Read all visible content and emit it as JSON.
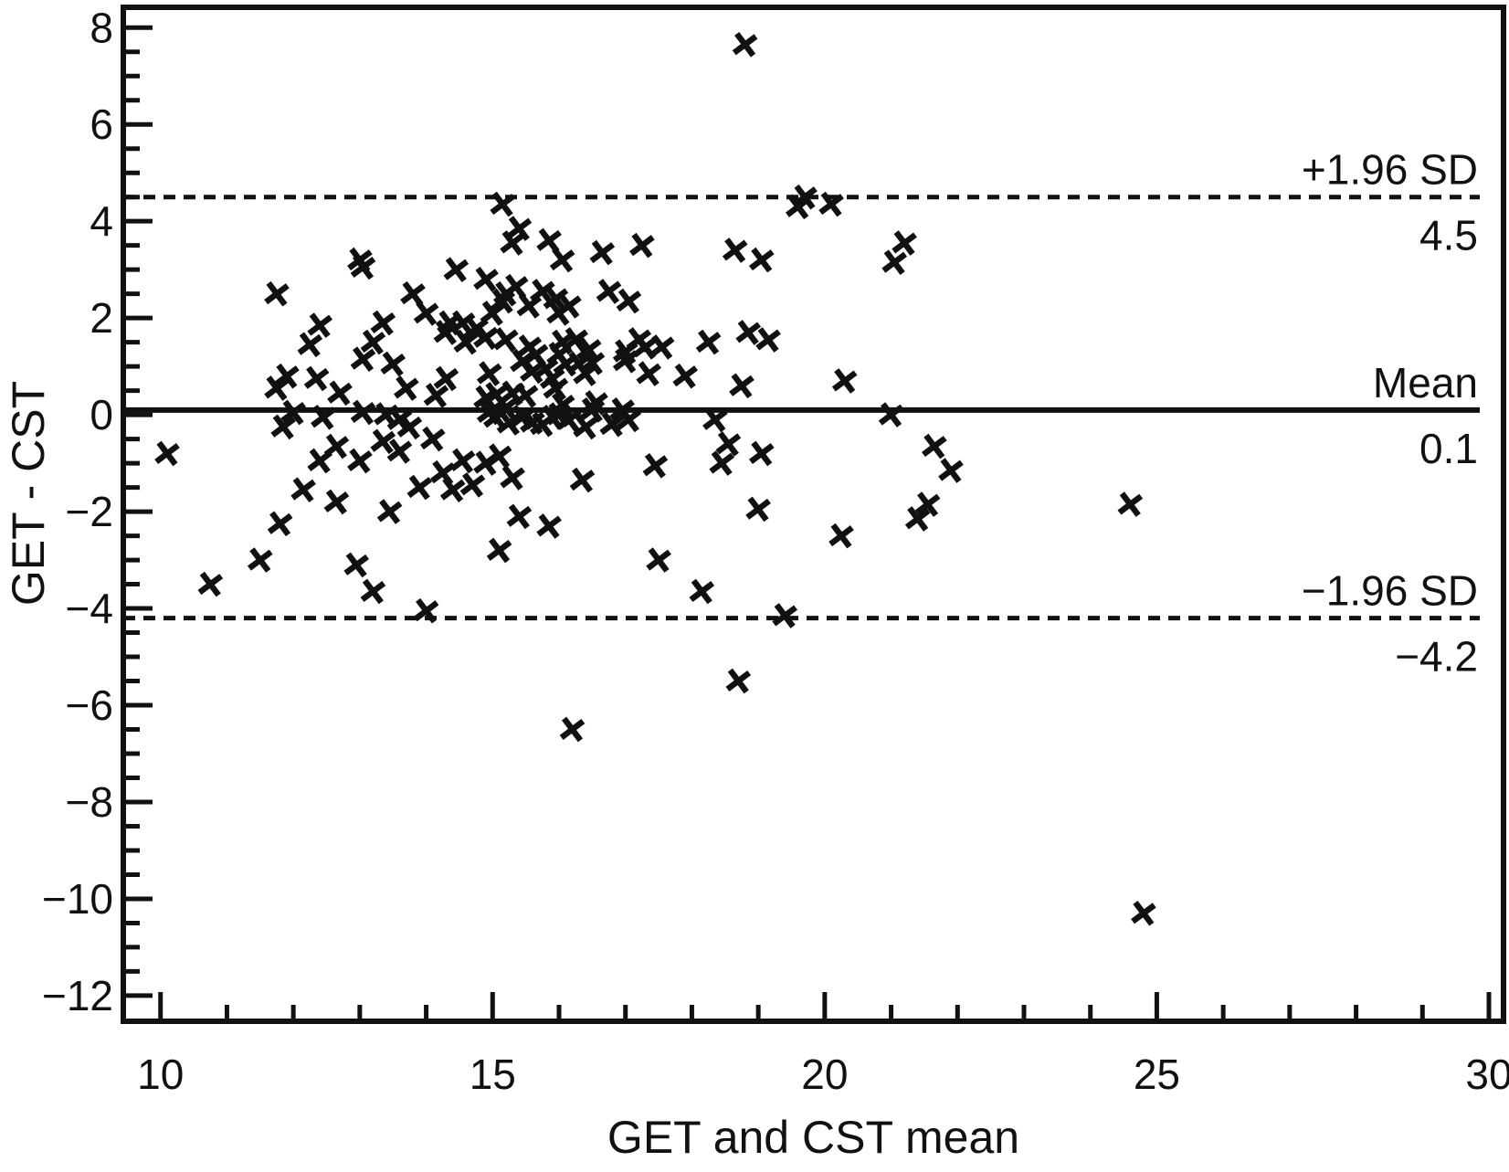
{
  "figure": {
    "background": "#ffffff",
    "ink_color": "#111111",
    "marker_color": "#111111"
  },
  "chart_data": {
    "type": "scatter",
    "title": "",
    "xlabel": "GET and CST mean",
    "ylabel": "GET - CST",
    "marker": "x",
    "grid": false,
    "xlim": [
      9.44,
      30.22
    ],
    "ylim": [
      -12.53,
      8.42
    ],
    "x_ticks": [
      {
        "v": 10,
        "label": "10"
      },
      {
        "v": 15,
        "label": "15"
      },
      {
        "v": 20,
        "label": "20"
      },
      {
        "v": 25,
        "label": "25"
      },
      {
        "v": 30,
        "label": "30"
      }
    ],
    "x_minor_step": 1,
    "y_ticks": [
      {
        "v": 8,
        "label": "8"
      },
      {
        "v": 6,
        "label": "6"
      },
      {
        "v": 4,
        "label": "4"
      },
      {
        "v": 2,
        "label": "2"
      },
      {
        "v": 0,
        "label": "0"
      },
      {
        "v": -2,
        "label": "−2"
      },
      {
        "v": -4,
        "label": "−4"
      },
      {
        "v": -6,
        "label": "−6"
      },
      {
        "v": -8,
        "label": "−8"
      },
      {
        "v": -10,
        "label": "−10"
      },
      {
        "v": -12,
        "label": "−12"
      }
    ],
    "y_minor_step": 0.5,
    "reference_lines": [
      {
        "name": "upper-loa",
        "label": "+1.96 SD",
        "value_label": "4.5",
        "y": 4.5,
        "style": "dashed"
      },
      {
        "name": "mean",
        "label": "Mean",
        "value_label": "0.1",
        "y": 0.1,
        "style": "solid"
      },
      {
        "name": "lower-loa",
        "label": "−1.96 SD",
        "value_label": "−4.2",
        "y": -4.2,
        "style": "dashed"
      }
    ],
    "points": [
      [
        10.1,
        -0.8
      ],
      [
        10.75,
        -3.5
      ],
      [
        11.5,
        -3.0
      ],
      [
        11.75,
        2.5
      ],
      [
        11.75,
        0.55
      ],
      [
        11.8,
        -2.25
      ],
      [
        11.85,
        -0.25
      ],
      [
        11.9,
        0.8
      ],
      [
        12.0,
        0.05
      ],
      [
        12.15,
        -1.55
      ],
      [
        12.25,
        1.45
      ],
      [
        12.35,
        0.75
      ],
      [
        12.4,
        1.85
      ],
      [
        12.4,
        -0.95
      ],
      [
        12.45,
        -0.05
      ],
      [
        12.65,
        -0.65
      ],
      [
        12.65,
        -1.8
      ],
      [
        12.7,
        0.45
      ],
      [
        12.95,
        -3.1
      ],
      [
        13.0,
        3.2
      ],
      [
        13.05,
        3.05
      ],
      [
        13.0,
        -0.95
      ],
      [
        13.05,
        1.15
      ],
      [
        13.05,
        0.05
      ],
      [
        13.2,
        1.5
      ],
      [
        13.2,
        -3.65
      ],
      [
        13.35,
        1.9
      ],
      [
        13.35,
        -0.55
      ],
      [
        13.4,
        0.0
      ],
      [
        13.45,
        -2.0
      ],
      [
        13.5,
        1.05
      ],
      [
        13.6,
        -0.1
      ],
      [
        13.6,
        -0.75
      ],
      [
        13.7,
        0.55
      ],
      [
        13.75,
        -0.25
      ],
      [
        13.8,
        2.5
      ],
      [
        13.9,
        -1.5
      ],
      [
        14.0,
        2.1
      ],
      [
        14.0,
        -4.05
      ],
      [
        14.1,
        -0.5
      ],
      [
        14.15,
        0.4
      ],
      [
        14.25,
        -1.2
      ],
      [
        14.3,
        1.7
      ],
      [
        14.3,
        0.75
      ],
      [
        14.35,
        1.9
      ],
      [
        14.4,
        -1.55
      ],
      [
        14.45,
        3.0
      ],
      [
        14.55,
        1.9
      ],
      [
        14.55,
        -0.95
      ],
      [
        14.6,
        1.5
      ],
      [
        14.7,
        -1.45
      ],
      [
        14.75,
        1.78
      ],
      [
        14.9,
        2.8
      ],
      [
        14.9,
        1.6
      ],
      [
        14.9,
        0.35
      ],
      [
        14.9,
        -1.0
      ],
      [
        14.95,
        0.85
      ],
      [
        14.95,
        0.05
      ],
      [
        15.0,
        2.1
      ],
      [
        15.05,
        0.42
      ],
      [
        15.05,
        -0.05
      ],
      [
        15.1,
        -0.85
      ],
      [
        15.1,
        -2.8
      ],
      [
        15.15,
        4.35
      ],
      [
        15.15,
        2.35
      ],
      [
        15.2,
        2.5
      ],
      [
        15.2,
        1.55
      ],
      [
        15.2,
        0.15
      ],
      [
        15.25,
        -0.17
      ],
      [
        15.3,
        3.55
      ],
      [
        15.3,
        0.45
      ],
      [
        15.3,
        -1.3
      ],
      [
        15.35,
        2.65
      ],
      [
        15.4,
        3.85
      ],
      [
        15.4,
        -2.1
      ],
      [
        15.45,
        1.1
      ],
      [
        15.45,
        -0.05
      ],
      [
        15.5,
        0.4
      ],
      [
        15.55,
        2.25
      ],
      [
        15.55,
        1.4
      ],
      [
        15.6,
        0.9
      ],
      [
        15.6,
        -0.15
      ],
      [
        15.65,
        1.25
      ],
      [
        15.75,
        2.55
      ],
      [
        15.75,
        -0.2
      ],
      [
        15.8,
        0.95
      ],
      [
        15.85,
        3.6
      ],
      [
        15.85,
        -2.3
      ],
      [
        15.9,
        0.75
      ],
      [
        15.9,
        -0.05
      ],
      [
        15.95,
        2.4
      ],
      [
        15.95,
        0.55
      ],
      [
        16.0,
        2.1
      ],
      [
        16.0,
        1.25
      ],
      [
        16.0,
        0.0
      ],
      [
        16.05,
        3.2
      ],
      [
        16.05,
        1.5
      ],
      [
        16.05,
        0.2
      ],
      [
        16.1,
        1.05
      ],
      [
        16.15,
        2.25
      ],
      [
        16.15,
        -0.1
      ],
      [
        16.2,
        -6.5
      ],
      [
        16.25,
        1.55
      ],
      [
        16.3,
        1.05
      ],
      [
        16.35,
        -1.35
      ],
      [
        16.4,
        0.85
      ],
      [
        16.4,
        -0.25
      ],
      [
        16.45,
        1.35
      ],
      [
        16.5,
        1.08
      ],
      [
        16.5,
        0.1
      ],
      [
        16.55,
        0.25
      ],
      [
        16.65,
        3.35
      ],
      [
        16.75,
        2.55
      ],
      [
        16.8,
        -0.2
      ],
      [
        16.95,
        0.1
      ],
      [
        17.0,
        1.3
      ],
      [
        17.0,
        1.12
      ],
      [
        17.05,
        2.35
      ],
      [
        17.05,
        -0.1
      ],
      [
        17.2,
        1.55
      ],
      [
        17.25,
        3.5
      ],
      [
        17.3,
        1.4
      ],
      [
        17.35,
        0.85
      ],
      [
        17.45,
        -1.05
      ],
      [
        17.55,
        1.4
      ],
      [
        17.5,
        -3.0
      ],
      [
        17.9,
        0.8
      ],
      [
        18.15,
        -3.65
      ],
      [
        18.25,
        1.5
      ],
      [
        18.35,
        -0.1
      ],
      [
        18.45,
        -1.0
      ],
      [
        18.55,
        -0.6
      ],
      [
        18.65,
        3.4
      ],
      [
        18.7,
        -5.5
      ],
      [
        18.75,
        0.6
      ],
      [
        18.8,
        7.65
      ],
      [
        18.85,
        1.7
      ],
      [
        19.0,
        -1.95
      ],
      [
        19.05,
        3.2
      ],
      [
        19.05,
        -0.8
      ],
      [
        19.15,
        1.55
      ],
      [
        19.4,
        -4.15
      ],
      [
        19.6,
        4.3
      ],
      [
        19.7,
        4.5
      ],
      [
        20.1,
        4.35
      ],
      [
        20.25,
        -2.5
      ],
      [
        20.3,
        0.7
      ],
      [
        21.0,
        0.0
      ],
      [
        21.05,
        3.15
      ],
      [
        21.2,
        3.55
      ],
      [
        21.4,
        -2.15
      ],
      [
        21.55,
        -1.85
      ],
      [
        21.65,
        -0.65
      ],
      [
        21.9,
        -1.15
      ],
      [
        24.6,
        -1.85
      ],
      [
        24.8,
        -10.3
      ]
    ]
  }
}
